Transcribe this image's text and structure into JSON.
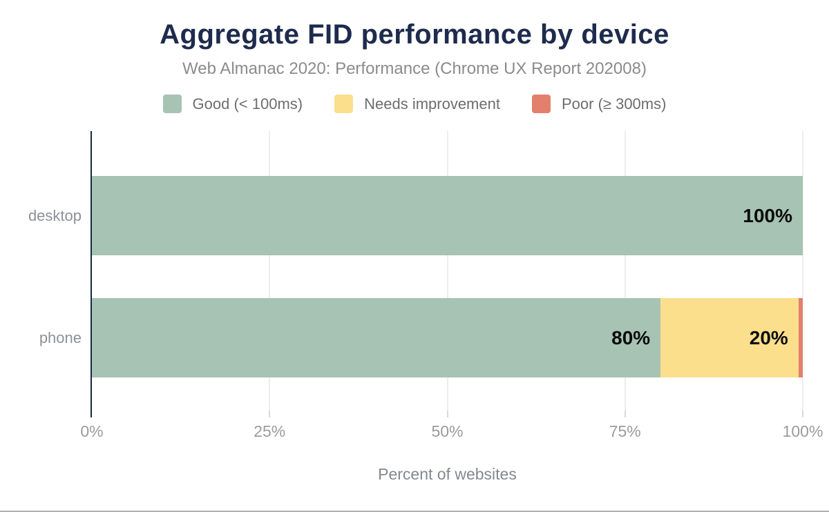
{
  "header": {
    "title": "Aggregate FID performance by device",
    "subtitle": "Web Almanac 2020: Performance (Chrome UX Report 202008)"
  },
  "colors": {
    "title_text": "#1e2b4d",
    "axis_line": "#16293d",
    "good": "#a6c3b3",
    "needs_improvement": "#fbdf8d",
    "poor": "#e3806d"
  },
  "chart_data": {
    "type": "bar",
    "orientation": "horizontal",
    "stacked": true,
    "title": "Aggregate FID performance by device",
    "subtitle": "Web Almanac 2020: Performance (Chrome UX Report 202008)",
    "categories": [
      "desktop",
      "phone"
    ],
    "series": [
      {
        "name": "Good (< 100ms)",
        "color": "#a6c3b3",
        "values": [
          100,
          80
        ],
        "labels": [
          "100%",
          "80%"
        ]
      },
      {
        "name": "Needs improvement",
        "color": "#fbdf8d",
        "values": [
          0,
          19.4
        ],
        "labels": [
          "",
          "20%"
        ]
      },
      {
        "name": "Poor (≥ 300ms)",
        "color": "#e3806d",
        "values": [
          0,
          0.6
        ],
        "labels": [
          "",
          ""
        ]
      }
    ],
    "xlabel": "Percent of websites",
    "ylabel": "",
    "x_ticks": [
      "0%",
      "25%",
      "50%",
      "75%",
      "100%"
    ],
    "x_tick_values": [
      0,
      25,
      50,
      75,
      100
    ],
    "xlim": [
      0,
      100
    ],
    "grid": true,
    "legend_position": "top"
  }
}
